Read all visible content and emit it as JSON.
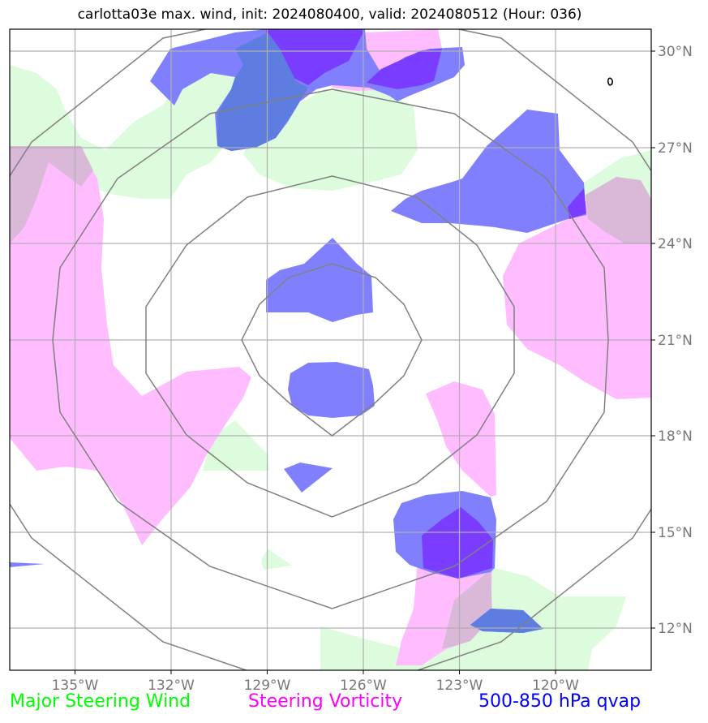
{
  "title": "carlotta03e max. wind, init: 2024080400, valid: 2024080512 (Hour: 036)",
  "lon_ticks": [
    "135°W",
    "132°W",
    "129°W",
    "126°W",
    "123°W",
    "120°W"
  ],
  "lat_ticks": [
    "30°N",
    "27°N",
    "24°N",
    "21°N",
    "18°N",
    "15°N",
    "12°N"
  ],
  "legend": [
    {
      "label": "Major Steering Wind",
      "color": "#00ff00"
    },
    {
      "label": "Steering Vorticity",
      "color": "#ff00ff"
    },
    {
      "label": "500-850 hPa qvap",
      "color": "#0000ff"
    }
  ],
  "colors": {
    "wind_fill": "#ddfcdd",
    "vorticity_fill": "#ffbcff",
    "qvap_fill": "#8080ff",
    "qvap_dark": "#7a3cff",
    "overlap_blue": "#5e7de0",
    "overlap_pink": "#dab8d8",
    "grid": "#b0b0b0",
    "rings": "#808080"
  }
}
